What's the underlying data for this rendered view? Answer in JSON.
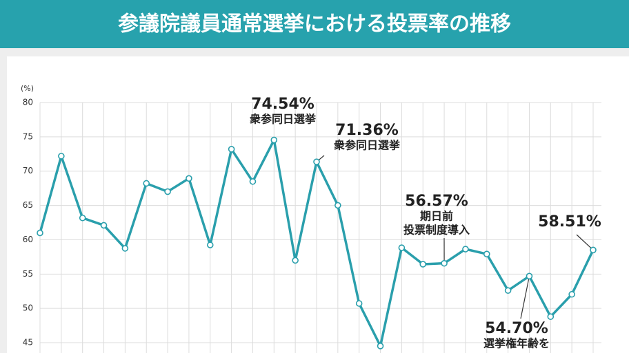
{
  "chart_data": {
    "type": "line",
    "title": "参議院議員通常選挙における投票率の推移",
    "y_unit": "(%)",
    "categories": [
      null,
      null,
      null,
      null,
      null,
      null,
      null,
      null,
      null,
      null,
      null,
      null,
      null,
      null,
      null,
      null,
      null,
      null,
      null,
      null,
      null,
      null,
      null,
      null,
      null,
      null,
      null
    ],
    "values": [
      61.0,
      72.19,
      63.18,
      62.11,
      58.75,
      68.22,
      67.02,
      68.94,
      59.24,
      73.2,
      68.49,
      74.54,
      57.0,
      71.36,
      65.02,
      50.72,
      44.52,
      58.84,
      56.44,
      56.57,
      58.64,
      57.92,
      52.61,
      54.7,
      48.8,
      52.05,
      58.51
    ],
    "value_labels": [
      null,
      null,
      null,
      null,
      null,
      null,
      null,
      null,
      null,
      null,
      null,
      "74.54%",
      null,
      "71.36%",
      null,
      null,
      null,
      null,
      null,
      "56.57%",
      null,
      null,
      null,
      "54.70%",
      null,
      null,
      "58.51%"
    ],
    "notes": [
      null,
      null,
      null,
      null,
      null,
      null,
      null,
      null,
      null,
      null,
      null,
      [
        "衆参同日選挙"
      ],
      null,
      [
        "衆参同日選挙"
      ],
      null,
      null,
      null,
      null,
      null,
      [
        "期日前",
        "投票制度導入"
      ],
      null,
      null,
      null,
      [
        "選挙権年齢を"
      ],
      null,
      null,
      null
    ],
    "color": "#2a9fac",
    "ylim": [
      43.5,
      80
    ],
    "yticks": [
      45,
      50,
      55,
      60,
      65,
      70,
      75,
      80
    ],
    "grid": true
  }
}
